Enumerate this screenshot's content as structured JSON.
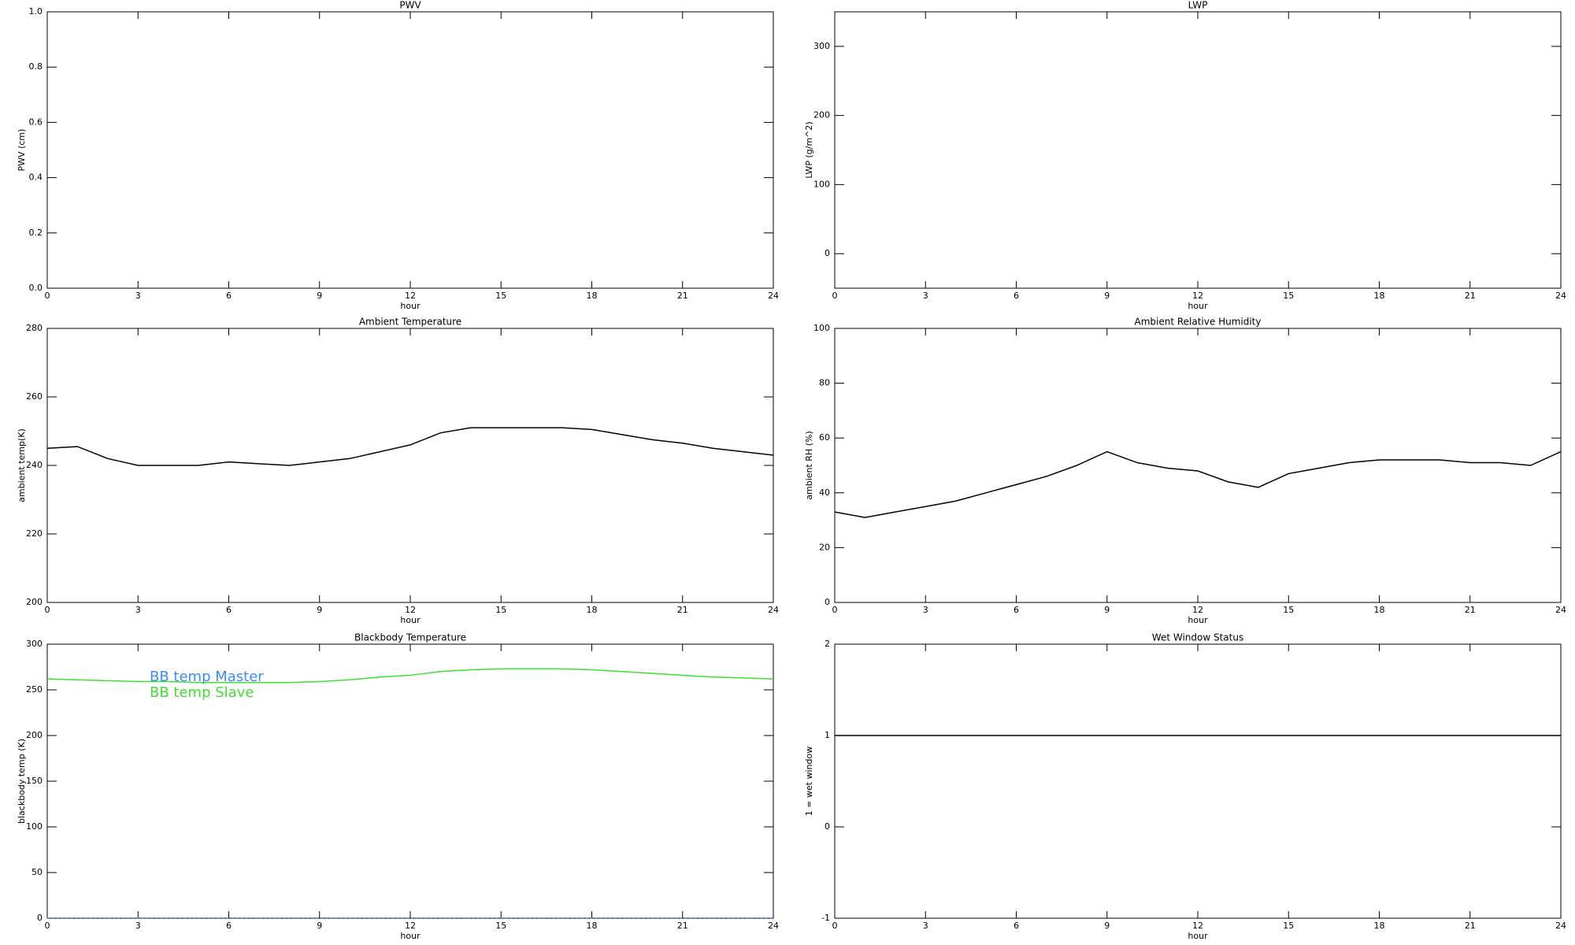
{
  "chart_data": [
    {
      "type": "line",
      "title": "PWV",
      "xlabel": "hour",
      "ylabel": "PWV (cm)",
      "xlim": [
        0,
        24
      ],
      "xticks": [
        0,
        3,
        6,
        9,
        12,
        15,
        18,
        21,
        24
      ],
      "ylim": [
        0,
        1
      ],
      "yticks": [
        {
          "value": 0,
          "label": "0.0"
        },
        {
          "value": 0.2,
          "label": "0.2"
        },
        {
          "value": 0.4,
          "label": "0.4"
        },
        {
          "value": 0.6,
          "label": "0.6"
        },
        {
          "value": 0.8,
          "label": "0.8"
        },
        {
          "value": 1,
          "label": "1.0"
        }
      ]
    },
    {
      "type": "line",
      "title": "LWP",
      "xlabel": "hour",
      "ylabel": "LWP (g/m^2)",
      "xlim": [
        0,
        24
      ],
      "xticks": [
        0,
        3,
        6,
        9,
        12,
        15,
        18,
        21,
        24
      ],
      "ylim": [
        -50,
        350
      ],
      "yticks": [
        0,
        100,
        200,
        300
      ]
    },
    {
      "type": "line",
      "title": "Ambient Temperature",
      "xlabel": "hour",
      "ylabel": "ambient temp(K)",
      "xlim": [
        0,
        24
      ],
      "xticks": [
        0,
        3,
        6,
        9,
        12,
        15,
        18,
        21,
        24
      ],
      "ylim": [
        200,
        280
      ],
      "yticks": [
        200,
        220,
        240,
        260,
        280
      ],
      "x": [
        0,
        1,
        2,
        3,
        4,
        5,
        6,
        7,
        8,
        9,
        10,
        11,
        12,
        13,
        14,
        15,
        16,
        17,
        18,
        19,
        20,
        21,
        22,
        23,
        24
      ],
      "series": [
        {
          "color": "#000000",
          "values": [
            245,
            245.5,
            242,
            240,
            240,
            240,
            241,
            240.5,
            240,
            241,
            242,
            244,
            246,
            249.5,
            251,
            251,
            251,
            251,
            250.5,
            249,
            247.5,
            246.5,
            245,
            244,
            243
          ]
        }
      ]
    },
    {
      "type": "line",
      "title": "Ambient Relative Humidity",
      "xlabel": "hour",
      "ylabel": "ambient RH (%)",
      "xlim": [
        0,
        24
      ],
      "xticks": [
        0,
        3,
        6,
        9,
        12,
        15,
        18,
        21,
        24
      ],
      "ylim": [
        0,
        100
      ],
      "yticks": [
        0,
        20,
        40,
        60,
        80,
        100
      ],
      "x": [
        0,
        1,
        2,
        3,
        4,
        5,
        6,
        7,
        8,
        9,
        10,
        11,
        12,
        13,
        14,
        15,
        16,
        17,
        18,
        19,
        20,
        21,
        22,
        23,
        24
      ],
      "series": [
        {
          "color": "#000000",
          "values": [
            33,
            31,
            33,
            35,
            37,
            40,
            43,
            46,
            50,
            55,
            51,
            49,
            48,
            44,
            42,
            47,
            49,
            51,
            52,
            52,
            52,
            51,
            51,
            50,
            55
          ]
        }
      ]
    },
    {
      "type": "line",
      "title": "Blackbody Temperature",
      "xlabel": "hour",
      "ylabel": "blackbody temp (K)",
      "xlim": [
        0,
        24
      ],
      "xticks": [
        0,
        3,
        6,
        9,
        12,
        15,
        18,
        21,
        24
      ],
      "ylim": [
        0,
        300
      ],
      "yticks": [
        0,
        50,
        100,
        150,
        200,
        250,
        300
      ],
      "legend": "upper left",
      "x": [
        0,
        1,
        2,
        3,
        4,
        5,
        6,
        7,
        8,
        9,
        10,
        11,
        12,
        13,
        14,
        15,
        16,
        17,
        18,
        19,
        20,
        21,
        22,
        23,
        24
      ],
      "series": [
        {
          "name": "BB temp Master",
          "color": "#3a8cff",
          "dashed": true,
          "values": [
            0,
            0,
            0,
            0,
            0,
            0,
            0,
            0,
            0,
            0,
            0,
            0,
            0,
            0,
            0,
            0,
            0,
            0,
            0,
            0,
            0,
            0,
            0,
            0,
            0
          ]
        },
        {
          "name": "BB temp Slave",
          "color": "#44dd33",
          "values": [
            262,
            261,
            260,
            259,
            259,
            258,
            258,
            258,
            258,
            259,
            261,
            264,
            266,
            270,
            272,
            273,
            273,
            273,
            272,
            270,
            268,
            266,
            264,
            263,
            262
          ]
        }
      ]
    },
    {
      "type": "line",
      "title": "Wet Window Status",
      "xlabel": "hour",
      "ylabel": "1 = wet window",
      "xlim": [
        0,
        24
      ],
      "xticks": [
        0,
        3,
        6,
        9,
        12,
        15,
        18,
        21,
        24
      ],
      "ylim": [
        -1,
        2
      ],
      "yticks": [
        -1,
        0,
        1,
        2
      ],
      "x": [
        0,
        1,
        2,
        3,
        4,
        5,
        6,
        7,
        8,
        9,
        10,
        11,
        12,
        13,
        14,
        15,
        16,
        17,
        18,
        19,
        20,
        21,
        22,
        23,
        24
      ],
      "series": [
        {
          "color": "#000000",
          "values": [
            1,
            1,
            1,
            1,
            1,
            1,
            1,
            1,
            1,
            1,
            1,
            1,
            1,
            1,
            1,
            1,
            1,
            1,
            1,
            1,
            1,
            1,
            1,
            1,
            1
          ]
        }
      ]
    }
  ]
}
